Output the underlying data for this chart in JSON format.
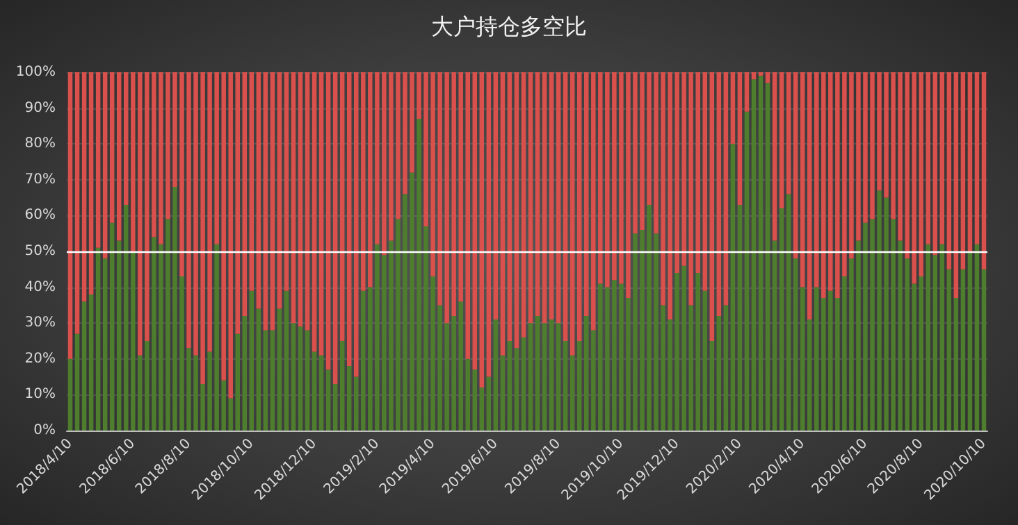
{
  "chart_data": {
    "type": "bar",
    "title": "大户持仓多空比",
    "categories": [
      "2018/4/10",
      null,
      null,
      null,
      null,
      null,
      null,
      null,
      null,
      "2018/6/10",
      null,
      null,
      null,
      null,
      null,
      null,
      null,
      "2018/8/10",
      null,
      null,
      null,
      null,
      null,
      null,
      null,
      null,
      "2018/10/10",
      null,
      null,
      null,
      null,
      null,
      null,
      null,
      null,
      "2018/12/10",
      null,
      null,
      null,
      null,
      null,
      null,
      null,
      null,
      "2019/2/10",
      null,
      null,
      null,
      null,
      null,
      null,
      null,
      "2019/4/10",
      null,
      null,
      null,
      null,
      null,
      null,
      null,
      null,
      "2019/6/10",
      null,
      null,
      null,
      null,
      null,
      null,
      null,
      null,
      "2019/8/10",
      null,
      null,
      null,
      null,
      null,
      null,
      null,
      null,
      "2019/10/10",
      null,
      null,
      null,
      null,
      null,
      null,
      null,
      "2019/12/10",
      null,
      null,
      null,
      null,
      null,
      null,
      null,
      null,
      "2020/2/10",
      null,
      null,
      null,
      null,
      null,
      null,
      null,
      null,
      "2020/4/10",
      null,
      null,
      null,
      null,
      null,
      null,
      null,
      null,
      "2020/6/10",
      null,
      null,
      null,
      null,
      null,
      null,
      null,
      "2020/8/10",
      null,
      null,
      null,
      null,
      null,
      null,
      null,
      null,
      "2020/10/10"
    ],
    "stacked": true,
    "series": [
      {
        "color": "#4e7d2e",
        "values": [
          20,
          27,
          36,
          38,
          51,
          48,
          58,
          53,
          63,
          50,
          21,
          25,
          54,
          52,
          59,
          68,
          43,
          23,
          21,
          13,
          22,
          52,
          14,
          9,
          27,
          32,
          39,
          34,
          28,
          28,
          34,
          39,
          30,
          29,
          28,
          22,
          21,
          17,
          13,
          25,
          18,
          15,
          39,
          40,
          52,
          49,
          53,
          59,
          66,
          72,
          87,
          57,
          43,
          35,
          30,
          32,
          36,
          20,
          17,
          12,
          15,
          31,
          21,
          25,
          23,
          26,
          30,
          32,
          30,
          31,
          30,
          25,
          21,
          25,
          32,
          28,
          41,
          40,
          42,
          41,
          37,
          55,
          56,
          63,
          55,
          35,
          31,
          44,
          46,
          35,
          44,
          39,
          25,
          32,
          35,
          80,
          63,
          89,
          98,
          99,
          97,
          53,
          62,
          66,
          48,
          40,
          31,
          40,
          37,
          39,
          37,
          43,
          48,
          53,
          58,
          59,
          67,
          65,
          59,
          53,
          48,
          41,
          43,
          52,
          49,
          52,
          45,
          37,
          45,
          50,
          52,
          45
        ]
      },
      {
        "color": "#d9504c",
        "values": [
          80,
          73,
          64,
          62,
          49,
          52,
          42,
          47,
          37,
          50,
          79,
          75,
          46,
          48,
          41,
          32,
          57,
          77,
          79,
          87,
          78,
          48,
          86,
          91,
          73,
          68,
          61,
          66,
          72,
          72,
          66,
          61,
          70,
          71,
          72,
          78,
          79,
          83,
          87,
          75,
          82,
          85,
          61,
          60,
          48,
          51,
          47,
          41,
          34,
          28,
          13,
          43,
          57,
          65,
          70,
          68,
          64,
          80,
          83,
          88,
          85,
          69,
          79,
          75,
          77,
          74,
          70,
          68,
          70,
          69,
          70,
          75,
          79,
          75,
          68,
          72,
          59,
          60,
          58,
          59,
          63,
          45,
          44,
          37,
          45,
          65,
          69,
          56,
          54,
          65,
          56,
          61,
          75,
          68,
          65,
          20,
          37,
          11,
          2,
          1,
          3,
          47,
          38,
          34,
          52,
          60,
          69,
          60,
          63,
          61,
          63,
          57,
          52,
          47,
          42,
          41,
          33,
          35,
          41,
          47,
          52,
          59,
          57,
          48,
          51,
          48,
          55,
          63,
          55,
          50,
          48,
          55
        ]
      }
    ],
    "ylim": [
      0,
      100
    ],
    "yticks": [
      {
        "value": 0,
        "label": "0%"
      },
      {
        "value": 10,
        "label": "10%"
      },
      {
        "value": 20,
        "label": "20%"
      },
      {
        "value": 30,
        "label": "30%"
      },
      {
        "value": 40,
        "label": "40%"
      },
      {
        "value": 50,
        "label": "50%"
      },
      {
        "value": 60,
        "label": "60%"
      },
      {
        "value": 70,
        "label": "70%"
      },
      {
        "value": 80,
        "label": "80%"
      },
      {
        "value": 90,
        "label": "90%"
      },
      {
        "value": 100,
        "label": "100%"
      }
    ],
    "grid": "y",
    "ref_lines": [
      {
        "axis": "y",
        "value": 50,
        "color": "#ffffff"
      }
    ]
  }
}
